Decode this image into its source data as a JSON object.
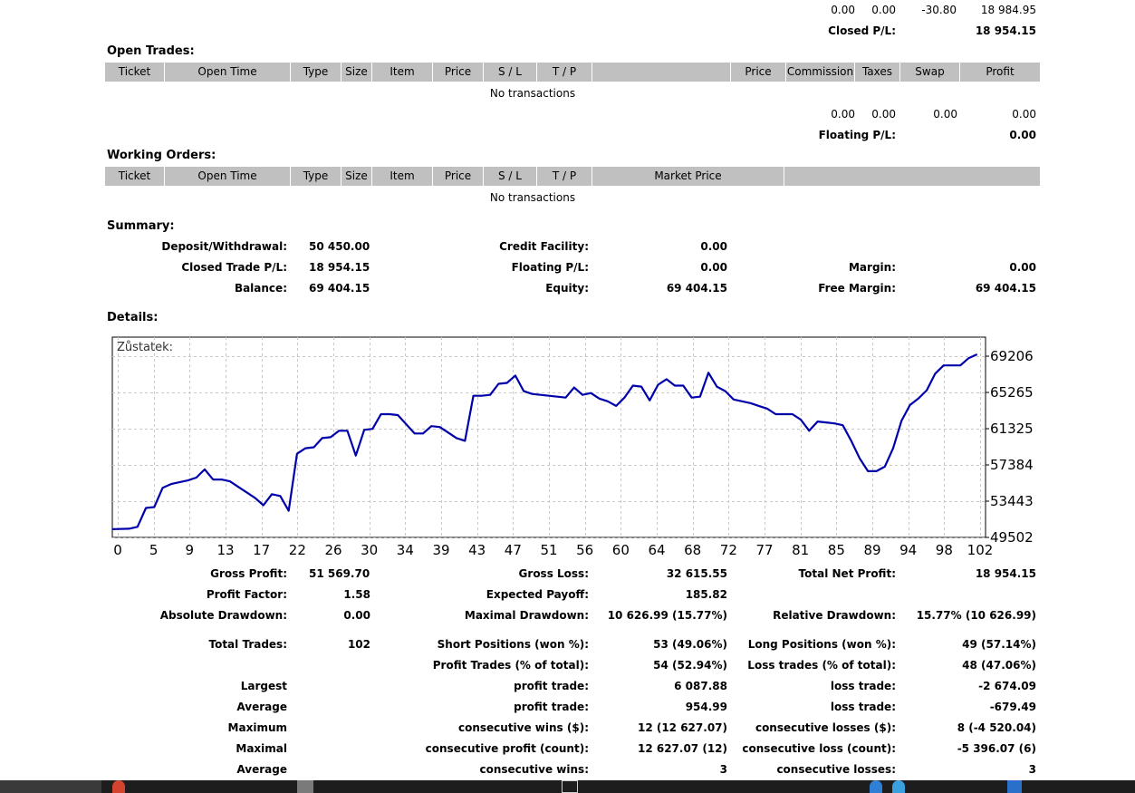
{
  "closed_section": {
    "totals": [
      "0.00",
      "0.00",
      "-30.80",
      "18 984.95"
    ],
    "pl_label": "Closed P/L:",
    "pl_value": "18 954.15"
  },
  "open_trades": {
    "title": "Open Trades:",
    "columns": [
      "Ticket",
      "Open Time",
      "Type",
      "Size",
      "Item",
      "Price",
      "S / L",
      "T / P",
      "",
      "Price",
      "Commission",
      "Taxes",
      "Swap",
      "Profit"
    ],
    "empty": "No transactions",
    "totals": [
      "0.00",
      "0.00",
      "0.00",
      "0.00"
    ],
    "pl_label": "Floating P/L:",
    "pl_value": "0.00"
  },
  "working_orders": {
    "title": "Working Orders:",
    "columns": [
      "Ticket",
      "Open Time",
      "Type",
      "Size",
      "Item",
      "Price",
      "S / L",
      "T / P",
      "Market Price",
      ""
    ],
    "empty": "No transactions"
  },
  "summary": {
    "title": "Summary:",
    "deposit_label": "Deposit/Withdrawal:",
    "deposit_value": "50 450.00",
    "credit_label": "Credit Facility:",
    "credit_value": "0.00",
    "closed_label": "Closed Trade P/L:",
    "closed_value": "18 954.15",
    "floating_label": "Floating P/L:",
    "floating_value": "0.00",
    "margin_label": "Margin:",
    "margin_value": "0.00",
    "balance_label": "Balance:",
    "balance_value": "69 404.15",
    "equity_label": "Equity:",
    "equity_value": "69 404.15",
    "free_margin_label": "Free Margin:",
    "free_margin_value": "69 404.15"
  },
  "details": {
    "title": "Details:"
  },
  "chart_data": {
    "type": "line",
    "title": "Zůstatek:",
    "x_ticks": [
      "0",
      "5",
      "9",
      "13",
      "17",
      "22",
      "26",
      "30",
      "34",
      "39",
      "43",
      "47",
      "51",
      "56",
      "60",
      "64",
      "68",
      "72",
      "77",
      "81",
      "85",
      "89",
      "94",
      "98",
      "102"
    ],
    "y_ticks": [
      "69206",
      "65265",
      "61325",
      "57384",
      "53443",
      "49502"
    ],
    "xlim": [
      0,
      104
    ],
    "ylim": [
      49502,
      69206
    ],
    "grid": true,
    "series": [
      {
        "color": "#0000aa",
        "x": [
          0,
          2,
          3,
          4,
          5,
          6,
          7,
          8,
          9,
          10,
          11,
          12,
          13,
          14,
          15,
          16,
          17,
          18,
          19,
          20,
          21,
          22,
          23,
          24,
          25,
          26,
          27,
          28,
          29,
          30,
          31,
          32,
          33,
          34,
          36,
          37,
          38,
          39,
          40,
          41,
          42,
          43,
          44,
          45,
          46,
          47,
          48,
          49,
          50,
          51,
          53,
          54,
          55,
          56,
          57,
          58,
          59,
          60,
          61,
          62,
          63,
          64,
          65,
          66,
          67,
          68,
          69,
          70,
          71,
          72,
          73,
          74,
          75,
          76,
          77,
          78,
          79,
          80,
          81,
          82,
          83,
          84,
          85,
          86,
          87,
          88,
          89,
          90,
          91,
          92,
          93,
          94,
          95,
          96,
          97,
          98,
          99,
          100,
          101,
          102,
          103
        ],
        "values": [
          50400,
          50450,
          50650,
          52700,
          52800,
          54900,
          55300,
          55500,
          55700,
          56000,
          56900,
          55800,
          55800,
          55600,
          55000,
          54400,
          53800,
          53000,
          54200,
          54000,
          52400,
          58600,
          59200,
          59300,
          60300,
          60400,
          61100,
          61100,
          58400,
          61200,
          61300,
          62900,
          62900,
          62800,
          60800,
          60800,
          61600,
          61500,
          60900,
          60300,
          60000,
          64900,
          64900,
          65000,
          66200,
          66300,
          67100,
          65400,
          65100,
          65000,
          64800,
          64700,
          65800,
          65000,
          65200,
          64600,
          64300,
          63800,
          64700,
          66000,
          65900,
          64400,
          66100,
          66700,
          66000,
          66000,
          64700,
          64800,
          67400,
          65900,
          65400,
          64500,
          64300,
          64100,
          63800,
          63500,
          62900,
          62900,
          62900,
          62300,
          61100,
          62100,
          62000,
          61900,
          61700,
          60000,
          58100,
          56700,
          56700,
          57200,
          59200,
          62200,
          63900,
          64600,
          65500,
          67300,
          68200,
          68200,
          68200,
          69000,
          69400
        ]
      }
    ]
  },
  "stats": {
    "gross_profit_label": "Gross Profit:",
    "gross_profit": "51 569.70",
    "gross_loss_label": "Gross Loss:",
    "gross_loss": "32 615.55",
    "net_profit_label": "Total Net Profit:",
    "net_profit": "18 954.15",
    "profit_factor_label": "Profit Factor:",
    "profit_factor": "1.58",
    "expected_payoff_label": "Expected Payoff:",
    "expected_payoff": "185.82",
    "abs_dd_label": "Absolute Drawdown:",
    "abs_dd": "0.00",
    "max_dd_label": "Maximal Drawdown:",
    "max_dd": "10 626.99 (15.77%)",
    "rel_dd_label": "Relative Drawdown:",
    "rel_dd": "15.77% (10 626.99)",
    "total_trades_label": "Total Trades:",
    "total_trades": "102",
    "short_label": "Short Positions (won %):",
    "short": "53 (49.06%)",
    "long_label": "Long Positions (won %):",
    "long": "49 (57.14%)",
    "profit_trades_label": "Profit Trades (% of total):",
    "profit_trades": "54 (52.94%)",
    "loss_trades_label": "Loss trades (% of total):",
    "loss_trades": "48 (47.06%)",
    "largest_label": "Largest",
    "largest_profit_label": "profit trade:",
    "largest_profit": "6 087.88",
    "largest_loss_label": "loss trade:",
    "largest_loss": "-2 674.09",
    "average_label": "Average",
    "average_profit_label": "profit trade:",
    "average_profit": "954.99",
    "average_loss_label": "loss trade:",
    "average_loss": "-679.49",
    "maximum_label": "Maximum",
    "max_wins_label": "consecutive wins ($):",
    "max_wins": "12 (12 627.07)",
    "max_losses_label": "consecutive losses ($):",
    "max_losses": "8 (-4 520.04)",
    "maximal_label": "Maximal",
    "maximal_profit_label": "consecutive profit (count):",
    "maximal_profit": "12 627.07 (12)",
    "maximal_loss_label": "consecutive loss (count):",
    "maximal_loss": "-5 396.07 (6)",
    "average2_label": "Average",
    "avg_wins_label": "consecutive wins:",
    "avg_wins": "3",
    "avg_losses_label": "consecutive losses:",
    "avg_losses": "3"
  }
}
